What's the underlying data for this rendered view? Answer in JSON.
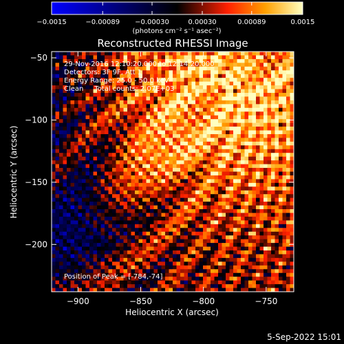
{
  "chart_data": {
    "type": "heatmap",
    "title": "Reconstructed RHESSI Image",
    "xlabel": "Heliocentric X (arcsec)",
    "ylabel": "Heliocentric Y (arcsec)",
    "xlim": [
      -921,
      -728
    ],
    "ylim": [
      -238,
      -45
    ],
    "x_ticks": [
      {
        "value": -900,
        "label": "−900"
      },
      {
        "value": -850,
        "label": "−850"
      },
      {
        "value": -800,
        "label": "−800"
      },
      {
        "value": -750,
        "label": "−750"
      }
    ],
    "y_ticks": [
      {
        "value": -50,
        "label": "−50"
      },
      {
        "value": -100,
        "label": "−100"
      },
      {
        "value": -150,
        "label": "−150"
      },
      {
        "value": -200,
        "label": "−200"
      }
    ],
    "colorbar": {
      "range": [
        -0.0015,
        0.0015
      ],
      "tick_values": [
        -0.0015,
        -0.00089,
        -0.0003,
        0.0003,
        0.00089,
        0.0015
      ],
      "tick_labels": [
        "−0.0015",
        "−0.00089",
        "−0.00030",
        "0.00030",
        "0.00089",
        "0.0015"
      ],
      "units": "(photons cm⁻² s⁻¹ asec⁻²)",
      "colors": [
        "#0000ff",
        "#000000",
        "#ff2000",
        "#ffa000",
        "#ffffc0"
      ]
    },
    "annotations": [
      "29-Nov-2016 12:10:20.000 to 12:14:20.000",
      "Detectors: 3F 9F, Att 1",
      "Energy Range: 25.0 - 50.0 keV",
      "Clean     Total counts: 2.07E+03"
    ],
    "peak_label": "Position of Peak = [-784,-74]",
    "peak": [
      -784,
      -74
    ]
  },
  "footer": {
    "date": "5-Sep-2022 15:01"
  }
}
